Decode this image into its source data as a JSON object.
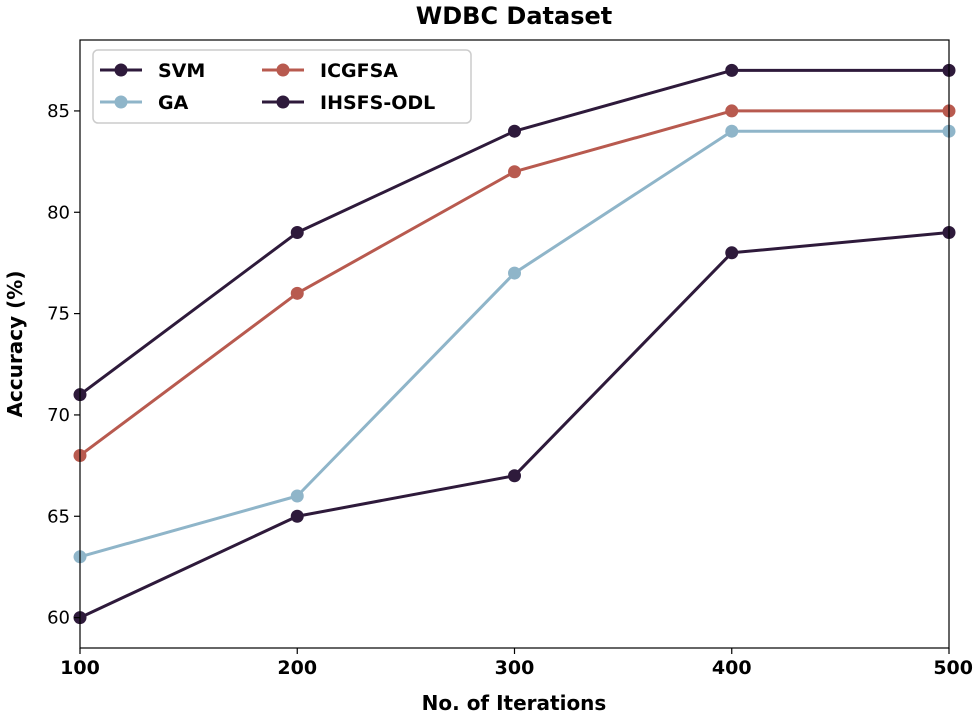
{
  "chart_data": {
    "type": "line",
    "title": "WDBC Dataset",
    "xlabel": "No. of Iterations",
    "ylabel": "Accuracy (%)",
    "x": [
      100,
      200,
      300,
      400,
      500
    ],
    "xlim": [
      100,
      500
    ],
    "ylim": [
      58.5,
      88.5
    ],
    "xticks": [
      100,
      200,
      300,
      400,
      500
    ],
    "yticks": [
      60,
      65,
      70,
      75,
      80,
      85
    ],
    "grid": false,
    "legend_position": "top-left",
    "series": [
      {
        "name": "SVM",
        "color": "#2e1a3b",
        "values": [
          60,
          65,
          67,
          78,
          79
        ]
      },
      {
        "name": "GA",
        "color": "#8fb5c9",
        "values": [
          63,
          66,
          77,
          84,
          84
        ]
      },
      {
        "name": "ICGFSA",
        "color": "#b85a4f",
        "values": [
          68,
          76,
          82,
          85,
          85
        ]
      },
      {
        "name": "IHSFS-ODL",
        "color": "#2e1a3b",
        "values": [
          71,
          79,
          84,
          87,
          87
        ]
      }
    ]
  }
}
